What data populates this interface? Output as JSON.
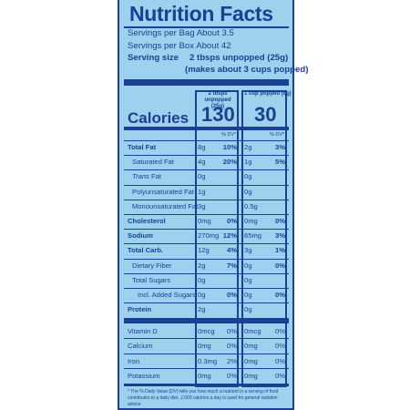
{
  "title": "Nutrition Facts",
  "servings_bag": "Servings per Bag About 3.5",
  "servings_box": "Servings per Box About 42",
  "serving_size_label": "Serving size",
  "serving_size_value": "2 tbsps unpopped (25g)",
  "serving_size_note": "(makes about 3 cups popped)",
  "col1_header": "2 tbsps unpopped (25g)",
  "col2_header": "1 cup popped (6g)",
  "calories_label": "Calories",
  "calories_col1": "130",
  "calories_col2": "30",
  "dv_label": "% DV*",
  "rows": [
    {
      "name": "Total Fat",
      "bold": true,
      "indent": 0,
      "a1": "8g",
      "p1": "10%",
      "a2": "2g",
      "p2": "3%"
    },
    {
      "name": "Saturated Fat",
      "bold": false,
      "indent": 1,
      "a1": "4g",
      "p1": "20%",
      "a2": "1g",
      "p2": "5%"
    },
    {
      "name": "Trans Fat",
      "bold": false,
      "indent": 1,
      "italic_prefix": "Trans",
      "a1": "0g",
      "p1": "",
      "a2": "0g",
      "p2": ""
    },
    {
      "name": "Polyunsaturated Fat",
      "bold": false,
      "indent": 1,
      "a1": "1g",
      "p1": "",
      "a2": "0g",
      "p2": ""
    },
    {
      "name": "Monounsaturated Fat",
      "bold": false,
      "indent": 1,
      "a1": "3g",
      "p1": "",
      "a2": "0.5g",
      "p2": ""
    },
    {
      "name": "Cholesterol",
      "bold": true,
      "indent": 0,
      "a1": "0mg",
      "p1": "0%",
      "a2": "0mg",
      "p2": "0%"
    },
    {
      "name": "Sodium",
      "bold": true,
      "indent": 0,
      "a1": "270mg",
      "p1": "12%",
      "a2": "65mg",
      "p2": "3%"
    },
    {
      "name": "Total Carb.",
      "bold": true,
      "indent": 0,
      "a1": "12g",
      "p1": "4%",
      "a2": "3g",
      "p2": "1%"
    },
    {
      "name": "Dietary Fiber",
      "bold": false,
      "indent": 1,
      "a1": "2g",
      "p1": "7%",
      "a2": "0g",
      "p2": "0%"
    },
    {
      "name": "Total Sugars",
      "bold": false,
      "indent": 1,
      "a1": "0g",
      "p1": "",
      "a2": "0g",
      "p2": ""
    },
    {
      "name": "Incl. Added Sugars",
      "bold": false,
      "indent": 2,
      "a1": "0g",
      "p1": "0%",
      "a2": "0g",
      "p2": "0%"
    },
    {
      "name": "Protein",
      "bold": true,
      "indent": 0,
      "a1": "2g",
      "p1": "",
      "a2": "0g",
      "p2": ""
    }
  ],
  "vitamins": [
    {
      "name": "Vitamin D",
      "a1": "0mcg",
      "p1": "0%",
      "a2": "0mcg",
      "p2": "0%"
    },
    {
      "name": "Calcium",
      "a1": "0mg",
      "p1": "0%",
      "a2": "0mg",
      "p2": "0%"
    },
    {
      "name": "Iron",
      "a1": "0.3mg",
      "p1": "2%",
      "a2": "0mg",
      "p2": "0%"
    },
    {
      "name": "Potassium",
      "a1": "0mg",
      "p1": "0%",
      "a2": "0mg",
      "p2": "0%"
    }
  ],
  "footnote": "* The % Daily Value (DV) tells you how much a nutrient in a serving of food contributes to a daily diet. 2,000 calories a day is used for general nutrition advice.",
  "colors": {
    "panel": "#9dd1ee",
    "ink": "#1b3f93"
  }
}
